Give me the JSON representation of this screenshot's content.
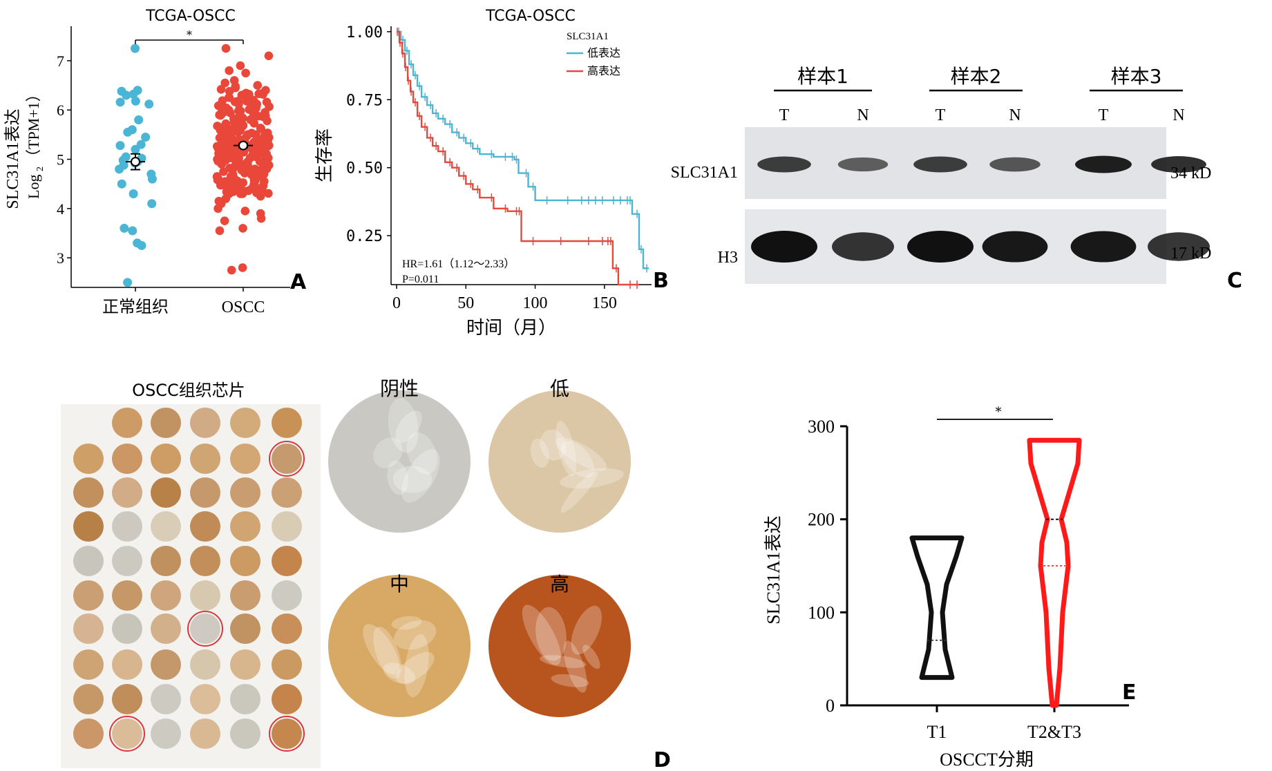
{
  "colors": {
    "low": "#4ab5d4",
    "high": "#e8473a",
    "violin_t1": "#111111",
    "violin_t23": "#ff1a1a",
    "circle_mark": "#d9363e"
  },
  "panels": {
    "A": "A",
    "B": "B",
    "C": "C",
    "D": "D",
    "E": "E"
  },
  "chart_data": [
    {
      "id": "A",
      "type": "scatter",
      "title": "TCGA-OSCC",
      "ylabel_main": "SLC31A1表达",
      "ylabel_sub": "Log",
      "ylabel_sub2": "2",
      "ylabel_sub3": "（TPM+1）",
      "categories": [
        "正常组织",
        "OSCC"
      ],
      "yticks": [
        "3",
        "4",
        "5",
        "6",
        "7"
      ],
      "ylim": [
        2.4,
        7.7
      ],
      "significance": "*",
      "series": [
        {
          "name": "正常组织",
          "mean": 4.95,
          "se": 0.16,
          "values": [
            7.25,
            6.4,
            6.38,
            6.3,
            6.32,
            6.18,
            6.16,
            6.12,
            5.8,
            5.6,
            5.55,
            5.45,
            5.3,
            5.28,
            5.2,
            5.05,
            5.02,
            4.98,
            4.95,
            4.92,
            4.88,
            4.8,
            4.7,
            4.6,
            4.5,
            4.3,
            4.1,
            3.6,
            3.55,
            3.3,
            3.25,
            2.5
          ]
        },
        {
          "name": "OSCC",
          "mean": 5.28,
          "se": 0.04,
          "values": [
            7.25,
            7.1,
            6.9,
            6.8,
            6.75,
            6.6,
            6.55,
            6.5,
            6.48,
            6.45,
            6.42,
            6.4,
            6.38,
            6.35,
            6.3,
            6.25,
            6.2,
            6.18,
            6.12,
            6.1,
            6.05,
            6.0,
            5.98,
            5.95,
            5.9,
            5.85,
            5.82,
            5.8,
            5.78,
            5.75,
            5.7,
            5.68,
            5.65,
            5.62,
            5.6,
            5.58,
            5.55,
            5.52,
            5.5,
            5.48,
            5.45,
            5.42,
            5.4,
            5.38,
            5.35,
            5.32,
            5.3,
            5.28,
            5.25,
            5.22,
            5.2,
            5.18,
            5.15,
            5.12,
            5.1,
            5.08,
            5.05,
            5.02,
            5.0,
            4.98,
            4.95,
            4.92,
            4.9,
            4.88,
            4.85,
            4.82,
            4.8,
            4.78,
            4.75,
            4.72,
            4.7,
            4.65,
            4.6,
            4.55,
            4.5,
            4.45,
            4.4,
            4.35,
            4.3,
            4.25,
            4.2,
            4.15,
            4.1,
            4.0,
            3.95,
            3.9,
            3.8,
            3.75,
            3.6,
            3.55,
            2.75,
            2.8
          ]
        }
      ]
    },
    {
      "id": "B",
      "type": "line",
      "title": "TCGA-OSCC",
      "xlabel": "时间（月）",
      "ylabel": "生存率",
      "xticks": [
        "0",
        "50",
        "100",
        "150"
      ],
      "yticks": [
        "0.25",
        "0.50",
        "0.75",
        "1.00"
      ],
      "xlim": [
        0,
        180
      ],
      "ylim": [
        0.07,
        1.02
      ],
      "legend_title": "SLC31A1",
      "legend_position": "top-right",
      "annotation_hr": "HR=1.61（1.12～2.33）",
      "annotation_p": "P=0.011",
      "series": [
        {
          "name": "低表达",
          "x": [
            0,
            3,
            6,
            9,
            12,
            15,
            18,
            22,
            26,
            30,
            35,
            40,
            45,
            50,
            55,
            60,
            70,
            80,
            85,
            88,
            95,
            100,
            110,
            125,
            135,
            140,
            145,
            150,
            158,
            163,
            168,
            170,
            175,
            178,
            182
          ],
          "y": [
            1.0,
            0.97,
            0.93,
            0.88,
            0.84,
            0.8,
            0.76,
            0.73,
            0.7,
            0.68,
            0.66,
            0.63,
            0.61,
            0.59,
            0.57,
            0.55,
            0.54,
            0.54,
            0.53,
            0.48,
            0.43,
            0.38,
            0.38,
            0.38,
            0.38,
            0.38,
            0.38,
            0.38,
            0.38,
            0.38,
            0.38,
            0.33,
            0.2,
            0.13,
            0.13
          ]
        },
        {
          "name": "高表达",
          "x": [
            0,
            2,
            4,
            6,
            8,
            10,
            12,
            15,
            18,
            22,
            26,
            30,
            35,
            40,
            45,
            50,
            55,
            60,
            70,
            80,
            88,
            90,
            100,
            120,
            140,
            150,
            154,
            156,
            160,
            170,
            175
          ],
          "y": [
            1.0,
            0.96,
            0.92,
            0.87,
            0.82,
            0.78,
            0.74,
            0.69,
            0.65,
            0.61,
            0.58,
            0.56,
            0.52,
            0.5,
            0.47,
            0.44,
            0.42,
            0.39,
            0.35,
            0.34,
            0.34,
            0.23,
            0.23,
            0.23,
            0.23,
            0.23,
            0.23,
            0.13,
            0.07,
            0.07,
            0.07
          ]
        }
      ]
    },
    {
      "id": "C",
      "type": "other",
      "samples": [
        "样本1",
        "样本2",
        "样本3"
      ],
      "lanes": [
        "T",
        "N",
        "T",
        "N",
        "T",
        "N"
      ],
      "rows": [
        {
          "label": "SLC31A1",
          "size": "34 kD",
          "intensity": [
            0.7,
            0.45,
            0.7,
            0.5,
            0.9,
            0.8
          ]
        },
        {
          "label": "H3",
          "size": "17 kD",
          "intensity": [
            1.0,
            0.75,
            1.0,
            0.95,
            0.95,
            0.75
          ]
        }
      ]
    },
    {
      "id": "D",
      "type": "other",
      "tma_title": "OSCC组织芯片",
      "cores": [
        {
          "label": "阴性",
          "tone": "#c9c8c2"
        },
        {
          "label": "低",
          "tone": "#dbc7a6"
        },
        {
          "label": "中",
          "tone": "#d8a964"
        },
        {
          "label": "高",
          "tone": "#b8551e"
        }
      ]
    },
    {
      "id": "E",
      "type": "other",
      "xlabel": "OSCCT分期",
      "ylabel": "SLC31A1表达",
      "categories": [
        "T1",
        "T2&T3"
      ],
      "yticks": [
        "0",
        "100",
        "200",
        "300"
      ],
      "ylim": [
        0,
        300
      ],
      "significance": "*",
      "series": [
        {
          "name": "T1",
          "min": 30,
          "max": 180,
          "median": 70
        },
        {
          "name": "T2&T3",
          "min": 0,
          "max": 285,
          "median": 150,
          "q3": 200
        }
      ]
    }
  ]
}
